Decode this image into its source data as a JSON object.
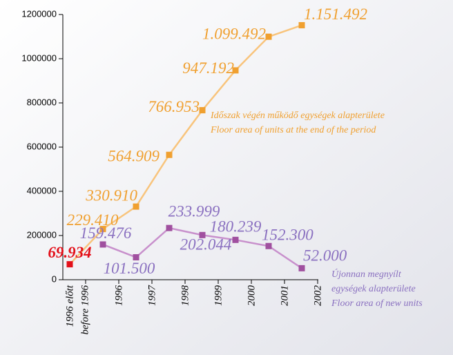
{
  "chart_data": {
    "type": "line",
    "categories": [
      [
        "1996 előtt",
        "before 1996"
      ],
      [
        "1996"
      ],
      [
        "1997"
      ],
      [
        "1998"
      ],
      [
        "1999"
      ],
      [
        "2000"
      ],
      [
        "2001"
      ],
      [
        "2002"
      ]
    ],
    "ylim": [
      0,
      1200000
    ],
    "yticks": [
      0,
      200000,
      400000,
      600000,
      800000,
      1000000,
      1200000
    ],
    "first_point_color": "#e3101a",
    "series": [
      {
        "name": [
          "Időszak végén működő egységek alapterülete",
          "Floor area of units at the end of the period"
        ],
        "color": "#f0a030",
        "line_color": "#f8c47c",
        "values": [
          69934,
          229410,
          330910,
          564909,
          766953,
          947192,
          1099492,
          1151492
        ],
        "value_labels": [
          "69.934",
          "229.410",
          "330.910",
          "564.909",
          "766.953",
          "947.192",
          "1.099.492",
          "1.151.492"
        ]
      },
      {
        "name": [
          "Újonnan megnyílt",
          "egységek alapterülete",
          "Floor area of new units"
        ],
        "color": "#a0509f",
        "line_color": "#c890cc",
        "label_color": "#8a70c0",
        "values": [
          null,
          159476,
          101500,
          233999,
          202044,
          180239,
          152300,
          52000
        ],
        "value_labels": [
          null,
          "159.476",
          "101.500",
          "233.999",
          "202.044",
          "180.239",
          "152.300",
          "52.000"
        ]
      }
    ]
  }
}
